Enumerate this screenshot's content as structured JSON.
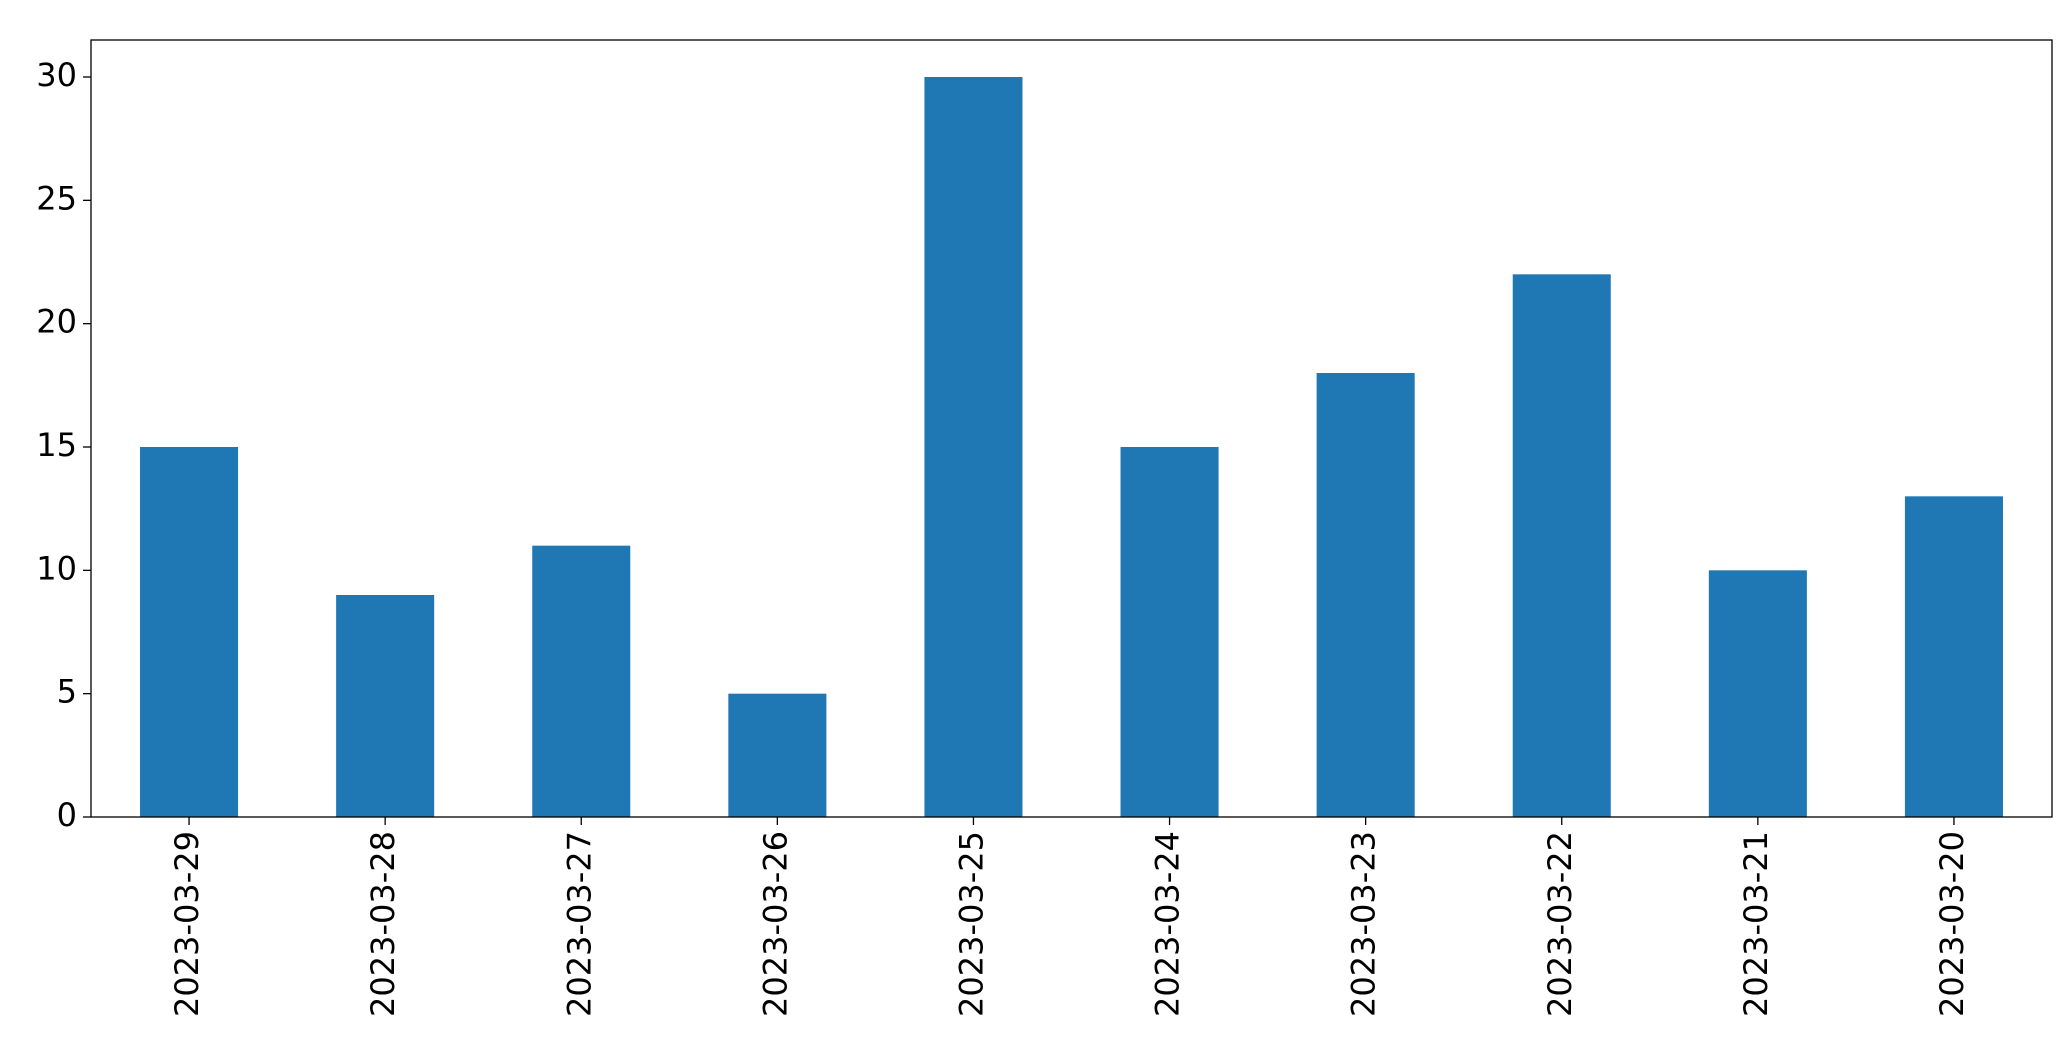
{
  "chart_data": {
    "type": "bar",
    "categories": [
      "2023-03-29",
      "2023-03-28",
      "2023-03-27",
      "2023-03-26",
      "2023-03-25",
      "2023-03-24",
      "2023-03-23",
      "2023-03-22",
      "2023-03-21",
      "2023-03-20"
    ],
    "values": [
      15,
      9,
      11,
      5,
      30,
      15,
      18,
      22,
      10,
      13
    ],
    "color": "#1f77b4",
    "ylim": [
      0,
      31.5
    ],
    "yticks": [
      0,
      5,
      10,
      15,
      20,
      25,
      30
    ],
    "grid": false
  }
}
